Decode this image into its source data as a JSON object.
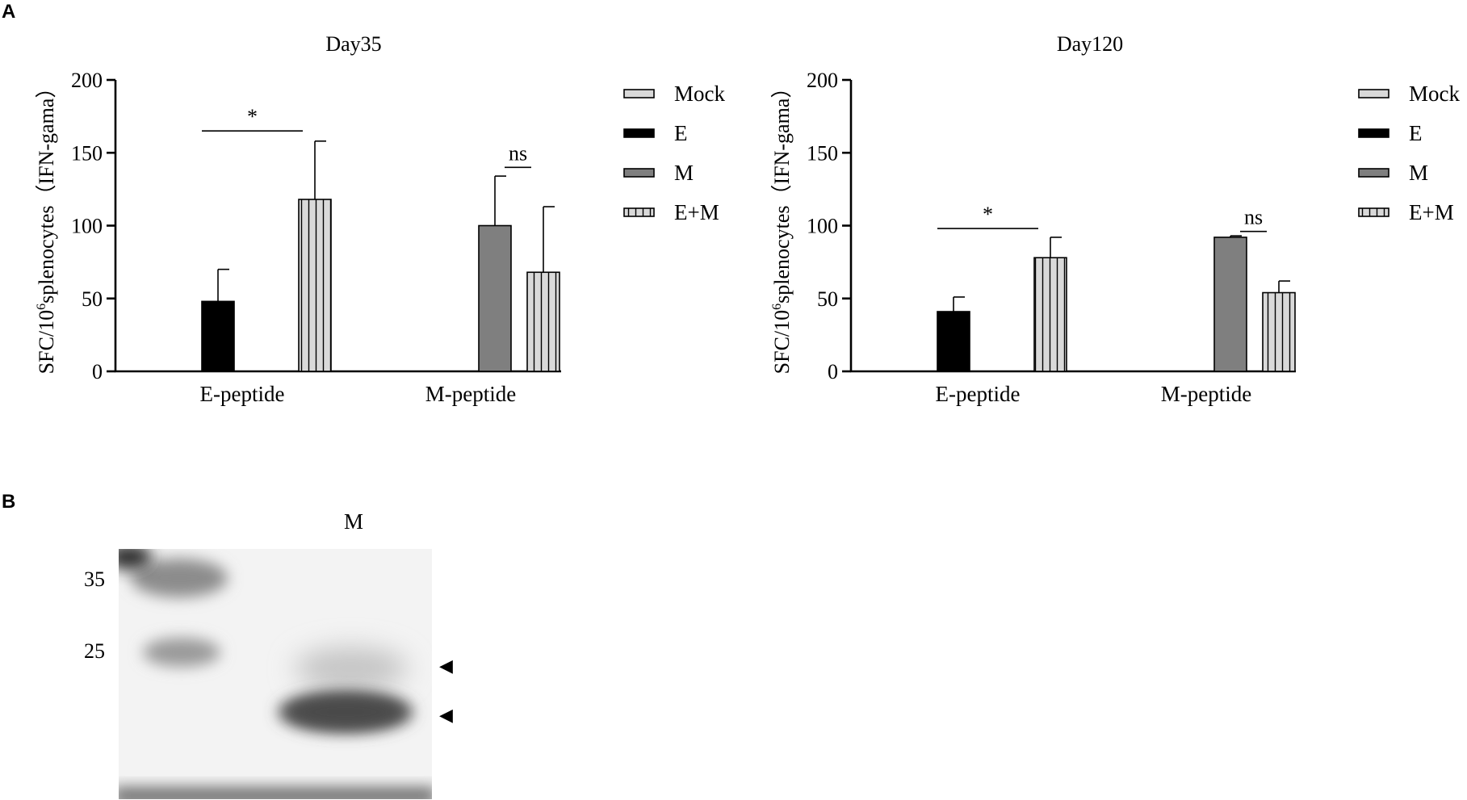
{
  "panels": {
    "a_label": "A",
    "b_label": "B"
  },
  "colors": {
    "mock": "#d9d9d9",
    "e": "#000000",
    "m": "#7f7f7f",
    "em": "#d9d9d9",
    "em_stripe": "#000000"
  },
  "legend": [
    "Mock",
    "E",
    "M",
    "E+M"
  ],
  "chart_data": [
    {
      "type": "bar",
      "title": "Day35",
      "ylabel_main": "SFC/10",
      "ylabel_sup": "6",
      "ylabel_rest": "splenocytes（IFN-gama）",
      "xlabel": "",
      "ylim": [
        0,
        200
      ],
      "yticks": [
        0,
        50,
        100,
        150,
        200
      ],
      "categories": [
        "E-peptide",
        "M-peptide"
      ],
      "series": [
        {
          "name": "Mock",
          "values": [
            0,
            0
          ],
          "errors": [
            0,
            0
          ]
        },
        {
          "name": "E",
          "values": [
            48,
            0
          ],
          "errors": [
            22,
            0
          ]
        },
        {
          "name": "M",
          "values": [
            0,
            100
          ],
          "errors": [
            0,
            34
          ]
        },
        {
          "name": "E+M",
          "values": [
            118,
            68
          ],
          "errors": [
            40,
            45
          ]
        }
      ],
      "annotations": [
        {
          "text": "*",
          "category": "E-peptide",
          "from": "E",
          "to": "E+M",
          "y": 165
        },
        {
          "text": "ns",
          "category": "M-peptide",
          "from": "M",
          "to": "E+M",
          "y": 140
        }
      ],
      "legend_position": "right"
    },
    {
      "type": "bar",
      "title": "Day120",
      "ylabel_main": "SFC/10",
      "ylabel_sup": "6",
      "ylabel_rest": "splenocytes（IFN-gama）",
      "xlabel": "",
      "ylim": [
        0,
        200
      ],
      "yticks": [
        0,
        50,
        100,
        150,
        200
      ],
      "categories": [
        "E-peptide",
        "M-peptide"
      ],
      "series": [
        {
          "name": "Mock",
          "values": [
            0,
            0
          ],
          "errors": [
            0,
            0
          ]
        },
        {
          "name": "E",
          "values": [
            41,
            0
          ],
          "errors": [
            10,
            0
          ]
        },
        {
          "name": "M",
          "values": [
            0,
            92
          ],
          "errors": [
            0,
            1
          ]
        },
        {
          "name": "E+M",
          "values": [
            78,
            54
          ],
          "errors": [
            14,
            8
          ]
        }
      ],
      "annotations": [
        {
          "text": "*",
          "category": "E-peptide",
          "from": "E",
          "to": "E+M",
          "y": 98
        },
        {
          "text": "ns",
          "category": "M-peptide",
          "from": "M",
          "to": "E+M",
          "y": 96
        }
      ],
      "legend_position": "right"
    }
  ],
  "blot": {
    "lane_label": "M",
    "markers": [
      "35",
      "25"
    ],
    "arrow_glyph": "◀"
  }
}
